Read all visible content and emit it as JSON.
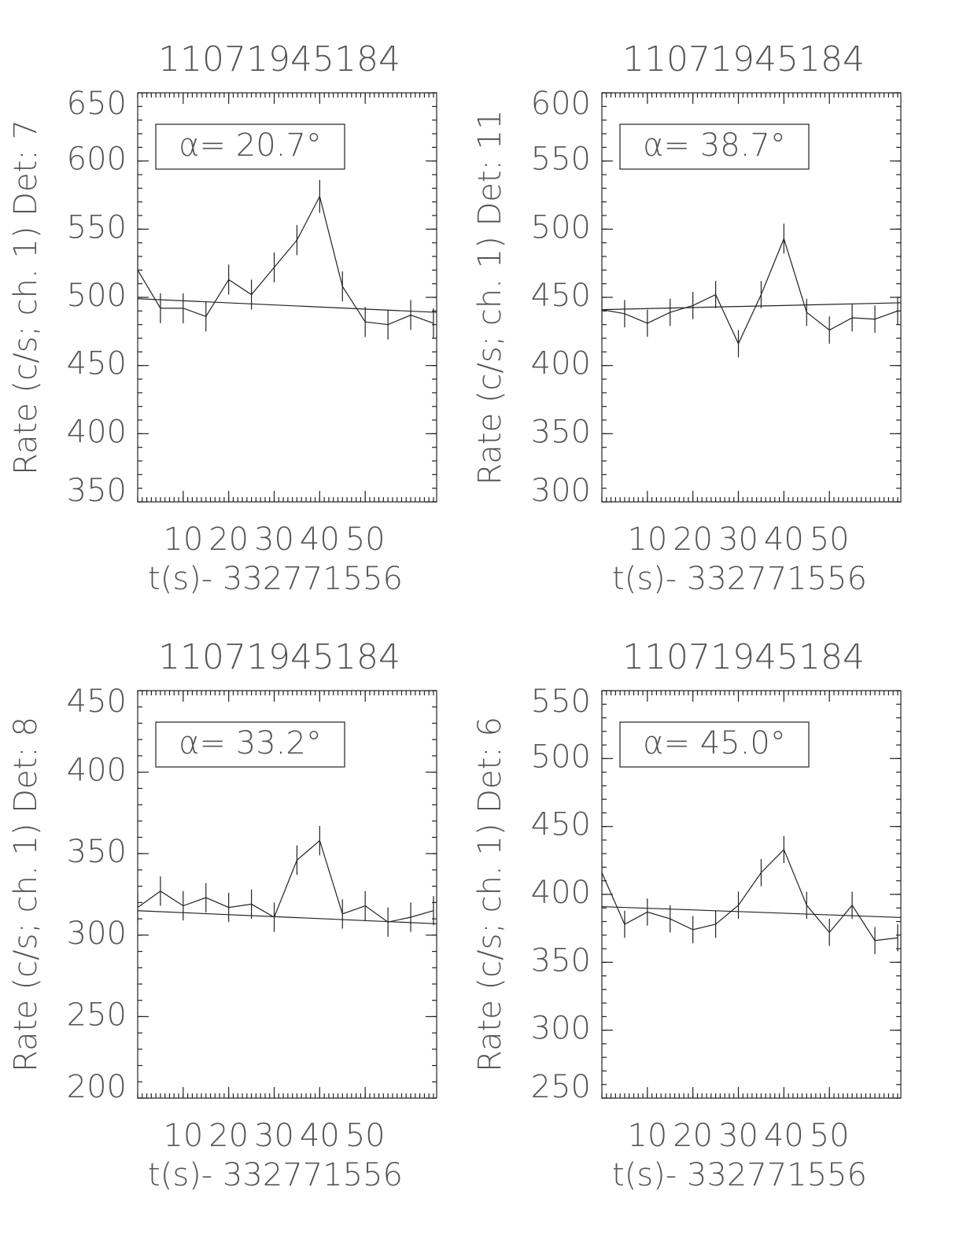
{
  "chart_data": [
    {
      "type": "line",
      "title": "11071945184",
      "y_label": "Rate (c/s; ch. 1) Det: 7",
      "x_label": "t(s)- 332771556",
      "annotation": "α= 20.7°",
      "xlim": [
        0,
        65.7
      ],
      "xticks": [
        10,
        20,
        30,
        40,
        50
      ],
      "ylim": [
        350,
        650
      ],
      "yticks": [
        350,
        400,
        450,
        500,
        550,
        600,
        650
      ],
      "x_minor_step": 1,
      "y_minor_step": 10,
      "color": "#000000",
      "x": [
        0,
        5,
        10,
        15,
        20,
        25,
        30,
        35,
        40,
        45,
        50,
        55,
        60,
        65
      ],
      "values": [
        520,
        492,
        492,
        486,
        513,
        502,
        522,
        542,
        574,
        508,
        482,
        480,
        487,
        481
      ],
      "errors": [
        11,
        11,
        11,
        11,
        11,
        11,
        11,
        11,
        12,
        11,
        11,
        11,
        11,
        11
      ],
      "fit": {
        "x": [
          0,
          65.7
        ],
        "values": [
          499,
          489
        ]
      }
    },
    {
      "type": "line",
      "title": "11071945184",
      "y_label": "Rate (c/s; ch. 1) Det: 11",
      "x_label": "t(s)- 332771556",
      "annotation": "α= 38.7°",
      "xlim": [
        0,
        65.7
      ],
      "xticks": [
        10,
        20,
        30,
        40,
        50
      ],
      "ylim": [
        300,
        600
      ],
      "yticks": [
        300,
        350,
        400,
        450,
        500,
        550,
        600
      ],
      "x_minor_step": 1,
      "y_minor_step": 10,
      "color": "#000000",
      "x": [
        0,
        5,
        10,
        15,
        20,
        25,
        30,
        35,
        40,
        45,
        50,
        55,
        60,
        65
      ],
      "values": [
        441,
        438,
        431,
        439,
        444,
        452,
        416,
        452,
        493,
        439,
        426,
        435,
        434,
        440
      ],
      "errors": [
        10,
        10,
        10,
        10,
        10,
        10,
        10,
        10,
        11,
        10,
        10,
        10,
        10,
        10
      ],
      "fit": {
        "x": [
          0,
          65.7
        ],
        "values": [
          441,
          446
        ]
      }
    },
    {
      "type": "line",
      "title": "11071945184",
      "y_label": "Rate (c/s; ch. 1) Det: 8",
      "x_label": "t(s)- 332771556",
      "annotation": "α= 33.2°",
      "xlim": [
        0,
        65.7
      ],
      "xticks": [
        10,
        20,
        30,
        40,
        50
      ],
      "ylim": [
        200,
        450
      ],
      "yticks": [
        200,
        250,
        300,
        350,
        400,
        450
      ],
      "x_minor_step": 1,
      "y_minor_step": 10,
      "color": "#000000",
      "x": [
        0,
        5,
        10,
        15,
        20,
        25,
        30,
        35,
        40,
        45,
        50,
        55,
        60,
        65
      ],
      "values": [
        317,
        327,
        318,
        323,
        317,
        319,
        311,
        346,
        358,
        313,
        318,
        308,
        311,
        315
      ],
      "errors": [
        9,
        9,
        9,
        9,
        9,
        9,
        9,
        9,
        9,
        9,
        9,
        9,
        9,
        9
      ],
      "fit": {
        "x": [
          0,
          65.7
        ],
        "values": [
          315,
          307
        ]
      }
    },
    {
      "type": "line",
      "title": "11071945184",
      "y_label": "Rate (c/s; ch. 1) Det: 6",
      "x_label": "t(s)- 332771556",
      "annotation": "α= 45.0°",
      "xlim": [
        0,
        65.7
      ],
      "xticks": [
        10,
        20,
        30,
        40,
        50
      ],
      "ylim": [
        250,
        550
      ],
      "yticks": [
        250,
        300,
        350,
        400,
        450,
        500,
        550
      ],
      "x_minor_step": 1,
      "y_minor_step": 10,
      "color": "#000000",
      "x": [
        0,
        5,
        10,
        15,
        20,
        25,
        30,
        35,
        40,
        45,
        50,
        55,
        60,
        65
      ],
      "values": [
        416,
        378,
        387,
        382,
        374,
        378,
        392,
        416,
        433,
        392,
        372,
        392,
        366,
        368
      ],
      "errors": [
        10,
        10,
        10,
        10,
        10,
        10,
        10,
        10,
        10,
        10,
        10,
        10,
        10,
        10
      ],
      "fit": {
        "x": [
          0,
          65.7
        ],
        "values": [
          391,
          383
        ]
      }
    }
  ]
}
